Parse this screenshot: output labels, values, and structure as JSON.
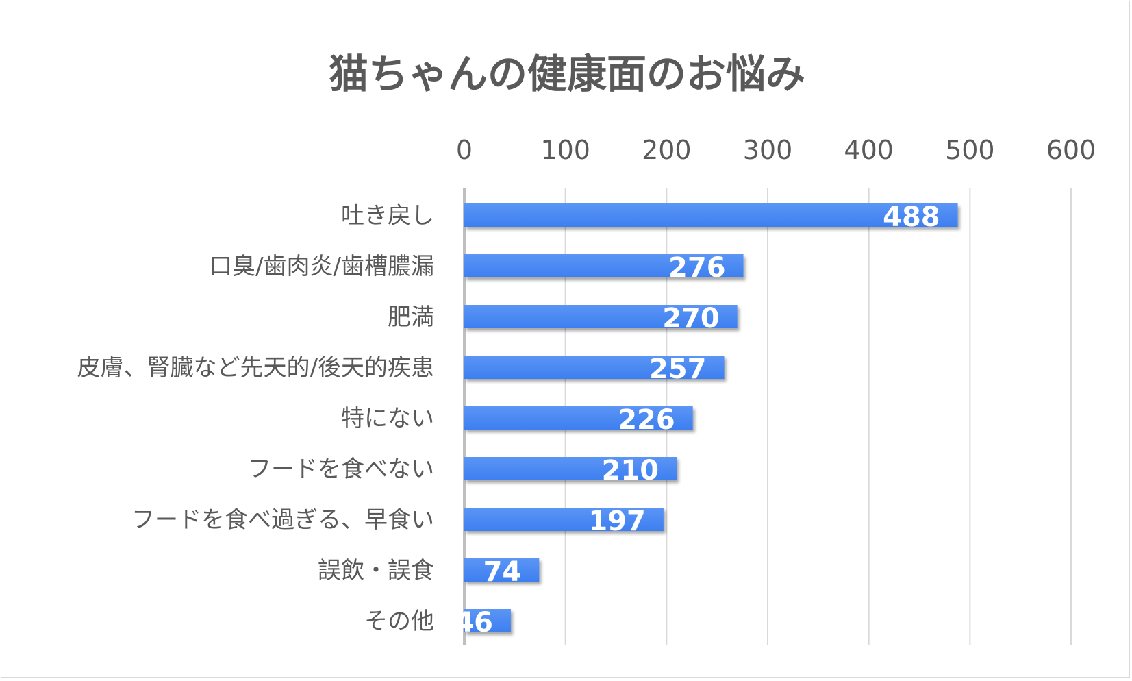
{
  "chart_data": {
    "type": "bar",
    "orientation": "horizontal",
    "title": "猫ちゃんの健康面のお悩み",
    "xlabel": "",
    "ylabel": "",
    "xlim": [
      0,
      600
    ],
    "ticks": [
      0,
      100,
      200,
      300,
      400,
      500,
      600
    ],
    "tick_labels": [
      "0",
      "100",
      "200",
      "300",
      "400",
      "500",
      "600"
    ],
    "x_axis_position": "top",
    "grid": true,
    "legend": "none",
    "categories": [
      "吐き戻し",
      "口臭/歯肉炎/歯槽膿漏",
      "肥満",
      "皮膚、腎臓など先天的/後天的疾患",
      "特にない",
      "フードを食べない",
      "フードを食べ過ぎる、早食い",
      "誤飲・誤食",
      "その他"
    ],
    "values": [
      488,
      276,
      270,
      257,
      226,
      210,
      197,
      74,
      46
    ],
    "value_labels": [
      "488",
      "276",
      "270",
      "257",
      "226",
      "210",
      "197",
      "74",
      "46"
    ],
    "bar_color": "#3d7ff0",
    "bar_color_light": "#5b95f5"
  }
}
